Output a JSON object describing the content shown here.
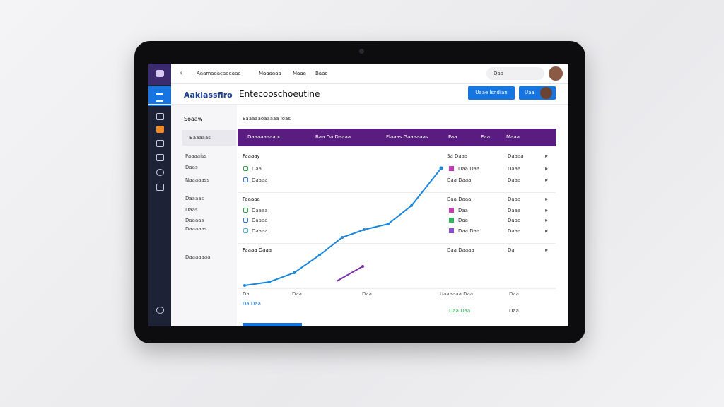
{
  "top_bar": {
    "breadcrumb": "Aaamaaacaaeaaa",
    "links": [
      "Maaaaaa",
      "Maaa",
      "Baaa"
    ],
    "search": "Qaa"
  },
  "header": {
    "brand": "Aaklassfiro",
    "title": "Entecooschoeutine",
    "primary_button": "Uaae lsndian",
    "secondary_button": "Uaa"
  },
  "sidebar": {
    "title": "Soaaw",
    "items": [
      "Baaaaas",
      "Paaaaiss",
      "Daas",
      "Naaaaass",
      "Daaaas",
      "Daas",
      "Daaaas",
      "Daaaaas",
      "Daaaaaaa"
    ]
  },
  "main": {
    "title": "Eaaaaaoaaaaa ioas",
    "columns": [
      "Daaaaaaaaoo",
      "Baa Da Daaaa",
      "Flaaas Gaaaaaas",
      "Paa",
      "Eaa",
      "Maaa"
    ],
    "rows": [
      {
        "label": "Faaaay",
        "c1": "Sa Daaa",
        "c2": "Daaaa"
      },
      {
        "label": "Daa",
        "icon": "#2fa84f",
        "swatch": "#c03fb8",
        "c1": "Daa Daa",
        "c2": "Daaa"
      },
      {
        "label": "Daaaa",
        "icon": "#3a7bd5",
        "c1": "Daa Daaa",
        "c2": "Daaa"
      },
      {
        "label": "Faaaaa",
        "c1": "Daa Daaa",
        "c2": "Daaa"
      },
      {
        "label": "Daaaa",
        "icon": "#2fa84f",
        "swatch": "#c03fb8",
        "c1": "Daa",
        "c2": "Daaa"
      },
      {
        "label": "Daaaa",
        "icon": "#3a7bd5",
        "swatch": "#2fb55a",
        "c1": "Daa",
        "c2": "Daaa"
      },
      {
        "label": "Daaaa",
        "icon": "#4fb6d8",
        "swatch": "#8a4fd0",
        "c1": "Daa Daa",
        "c2": "Daaa"
      },
      {
        "label": "Faaaa Daaa",
        "c1": "Daa Daaaa",
        "c2": "Da"
      }
    ],
    "axis": [
      "Da",
      "Daa",
      "Daa",
      "Uaaaaaa Daa",
      "Daa"
    ],
    "footer_link": "Da Daa",
    "footer_values": [
      "Daa Daa",
      "Daa"
    ]
  }
}
